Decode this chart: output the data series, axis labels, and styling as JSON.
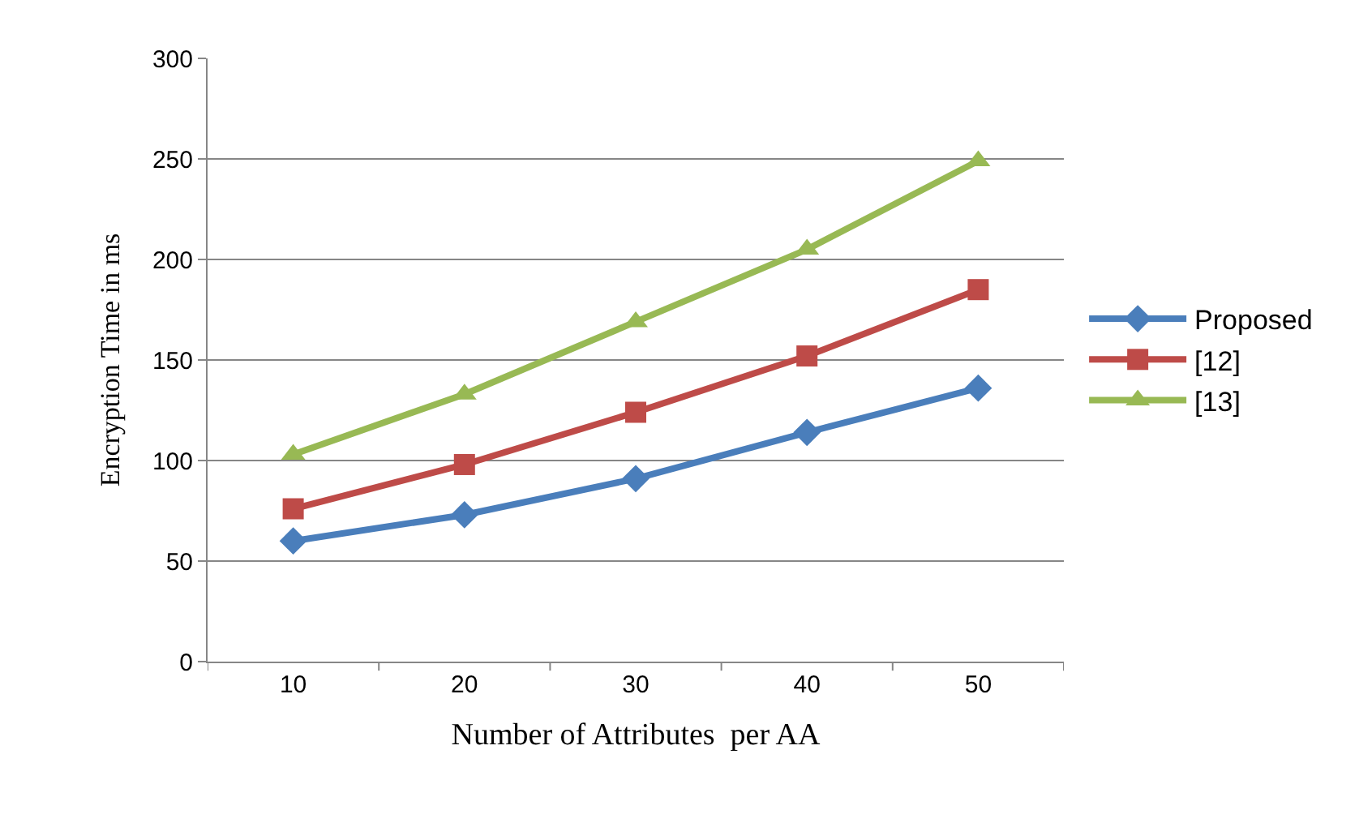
{
  "chart_data": {
    "type": "line",
    "xlabel": "Number of Attributes  per AA",
    "ylabel": "Encryption Time in ms",
    "categories": [
      "10",
      "20",
      "30",
      "40",
      "50"
    ],
    "series": [
      {
        "name": "Proposed",
        "color": "#4a7ebb",
        "marker": "diamond",
        "values": [
          60,
          73,
          91,
          114,
          136
        ]
      },
      {
        "name": "[12]",
        "color": "#be4b48",
        "marker": "square",
        "values": [
          76,
          98,
          124,
          152,
          185
        ]
      },
      {
        "name": "[13]",
        "color": "#98b954",
        "marker": "triangle",
        "values": [
          103,
          133,
          169,
          205,
          249
        ]
      }
    ],
    "ylim": [
      0,
      300
    ],
    "yticks": [
      0,
      50,
      100,
      150,
      200,
      250,
      300
    ],
    "grid": "y",
    "legend": "right",
    "line_style": "solid"
  }
}
